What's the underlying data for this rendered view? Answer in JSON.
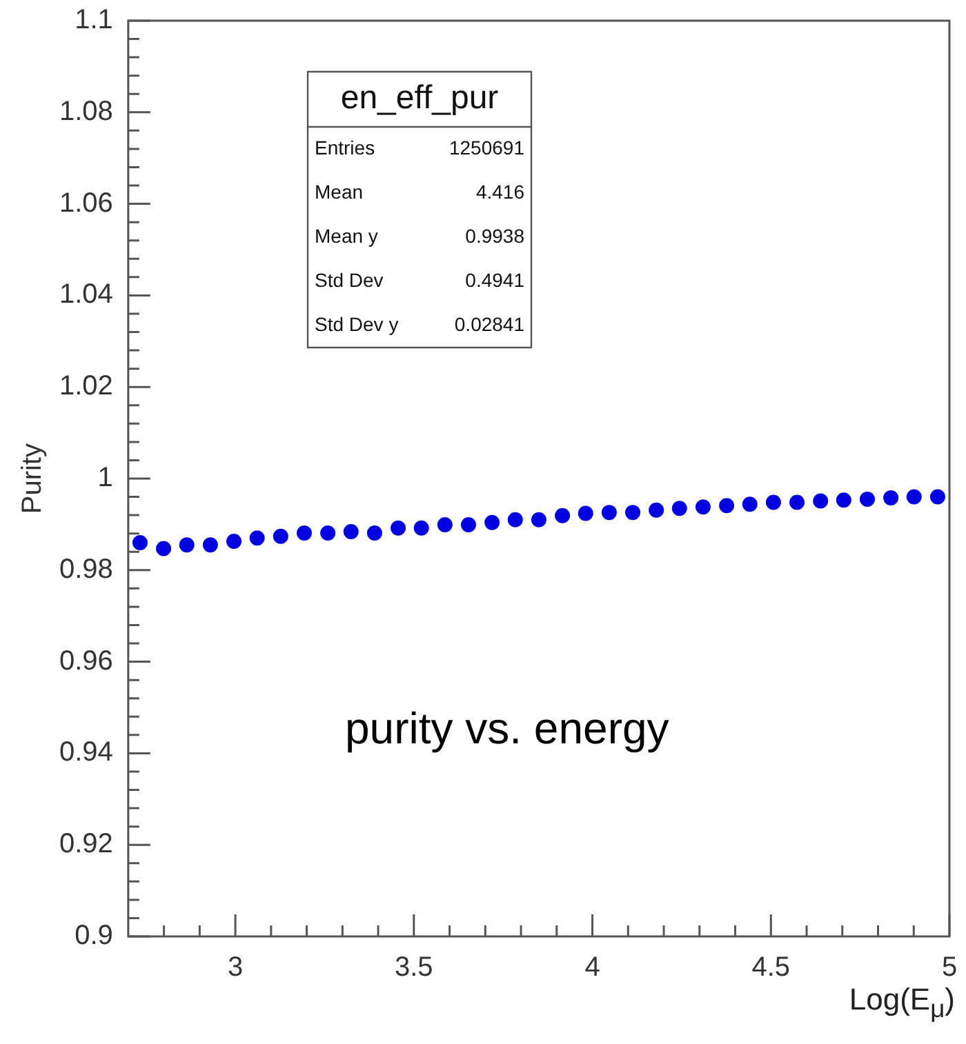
{
  "chart_data": {
    "type": "scatter",
    "xlabel": "Log(E$_{μ}$)",
    "ylabel": "Purity",
    "x": [
      2.733,
      2.799,
      2.864,
      2.93,
      2.996,
      3.061,
      3.127,
      3.193,
      3.259,
      3.324,
      3.39,
      3.456,
      3.521,
      3.587,
      3.653,
      3.719,
      3.784,
      3.85,
      3.916,
      3.981,
      4.047,
      4.113,
      4.179,
      4.244,
      4.31,
      4.376,
      4.441,
      4.507,
      4.573,
      4.639,
      4.704,
      4.77,
      4.836,
      4.901,
      4.967
    ],
    "series": [
      {
        "color": "#0000e0",
        "values": [
          0.986,
          0.9847,
          0.9855,
          0.9855,
          0.9863,
          0.987,
          0.9874,
          0.9881,
          0.9881,
          0.9884,
          0.9881,
          0.9892,
          0.9892,
          0.9899,
          0.9899,
          0.9904,
          0.991,
          0.991,
          0.9919,
          0.9924,
          0.9926,
          0.9926,
          0.9931,
          0.9935,
          0.9938,
          0.9941,
          0.9944,
          0.9948,
          0.9948,
          0.9951,
          0.9953,
          0.9955,
          0.9958,
          0.996,
          0.996
        ]
      }
    ],
    "xlim": [
      2.7,
      5
    ],
    "xticks": [
      {
        "value": 2.8,
        "label": null
      },
      {
        "value": 2.9,
        "label": null
      },
      3,
      {
        "value": 3.1,
        "label": null
      },
      {
        "value": 3.2,
        "label": null
      },
      {
        "value": 3.3,
        "label": null
      },
      {
        "value": 3.4,
        "label": null
      },
      3.5,
      {
        "value": 3.6,
        "label": null
      },
      {
        "value": 3.7,
        "label": null
      },
      {
        "value": 3.8,
        "label": null
      },
      {
        "value": 3.9,
        "label": null
      },
      4,
      {
        "value": 4.1,
        "label": null
      },
      {
        "value": 4.2,
        "label": null
      },
      {
        "value": 4.3,
        "label": null
      },
      {
        "value": 4.4,
        "label": null
      },
      4.5,
      {
        "value": 4.6,
        "label": null
      },
      {
        "value": 4.7,
        "label": null
      },
      {
        "value": 4.8,
        "label": null
      },
      {
        "value": 4.9,
        "label": null
      },
      5
    ],
    "ylim": [
      0.9,
      1.1
    ],
    "yticks": [
      0.9,
      {
        "value": 0.904,
        "label": null
      },
      {
        "value": 0.908,
        "label": null
      },
      {
        "value": 0.912,
        "label": null
      },
      {
        "value": 0.916,
        "label": null
      },
      0.92,
      {
        "value": 0.924,
        "label": null
      },
      {
        "value": 0.928,
        "label": null
      },
      {
        "value": 0.932,
        "label": null
      },
      {
        "value": 0.936,
        "label": null
      },
      0.94,
      {
        "value": 0.944,
        "label": null
      },
      {
        "value": 0.948,
        "label": null
      },
      {
        "value": 0.952,
        "label": null
      },
      {
        "value": 0.956,
        "label": null
      },
      0.96,
      {
        "value": 0.964,
        "label": null
      },
      {
        "value": 0.968,
        "label": null
      },
      {
        "value": 0.972,
        "label": null
      },
      {
        "value": 0.976,
        "label": null
      },
      0.98,
      {
        "value": 0.984,
        "label": null
      },
      {
        "value": 0.988,
        "label": null
      },
      {
        "value": 0.992,
        "label": null
      },
      {
        "value": 0.996,
        "label": null
      },
      1,
      {
        "value": 1.004,
        "label": null
      },
      {
        "value": 1.008,
        "label": null
      },
      {
        "value": 1.012,
        "label": null
      },
      {
        "value": 1.016,
        "label": null
      },
      1.02,
      {
        "value": 1.024,
        "label": null
      },
      {
        "value": 1.028,
        "label": null
      },
      {
        "value": 1.032,
        "label": null
      },
      {
        "value": 1.036,
        "label": null
      },
      1.04,
      {
        "value": 1.044,
        "label": null
      },
      {
        "value": 1.048,
        "label": null
      },
      {
        "value": 1.052,
        "label": null
      },
      {
        "value": 1.056,
        "label": null
      },
      1.06,
      {
        "value": 1.064,
        "label": null
      },
      {
        "value": 1.068,
        "label": null
      },
      {
        "value": 1.072,
        "label": null
      },
      {
        "value": 1.076,
        "label": null
      },
      1.08,
      {
        "value": 1.084,
        "label": null
      },
      {
        "value": 1.088,
        "label": null
      },
      {
        "value": 1.092,
        "label": null
      },
      {
        "value": 1.096,
        "label": null
      },
      1.1
    ],
    "marker": "circle",
    "annotations": [
      "en_eff_pur",
      "Entries",
      "1250691",
      "Mean",
      "4.416",
      "Mean y",
      "0.9938",
      "Std Dev",
      "0.4941",
      "Std Dev y",
      "0.02841",
      "purity vs. energy"
    ]
  }
}
